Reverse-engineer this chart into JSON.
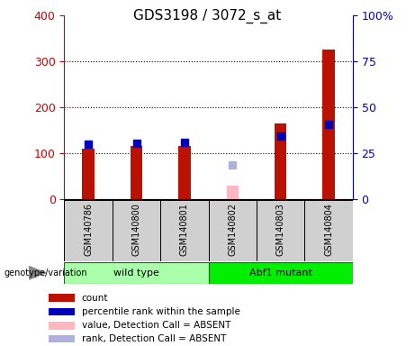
{
  "title": "GDS3198 / 3072_s_at",
  "samples": [
    "GSM140786",
    "GSM140800",
    "GSM140801",
    "GSM140802",
    "GSM140803",
    "GSM140804"
  ],
  "count_values": [
    110,
    115,
    115,
    0,
    165,
    325
  ],
  "percentile_values_left": [
    120,
    122,
    124,
    0,
    138,
    162
  ],
  "absent_value": [
    0,
    0,
    0,
    30,
    0,
    0
  ],
  "absent_rank_left": [
    0,
    0,
    0,
    75,
    0,
    0
  ],
  "absent_flags": [
    false,
    false,
    false,
    true,
    false,
    false
  ],
  "left_ylim": [
    0,
    400
  ],
  "right_ylim": [
    0,
    100
  ],
  "left_yticks": [
    0,
    100,
    200,
    300,
    400
  ],
  "right_yticks": [
    0,
    25,
    50,
    75,
    100
  ],
  "right_yticklabels": [
    "0",
    "25",
    "50",
    "75",
    "100%"
  ],
  "left_yaxis_color": "#cc0000",
  "right_yaxis_color": "#0000bb",
  "bar_color": "#bb1100",
  "marker_color": "#0000bb",
  "absent_bar_color": "#ffb6c1",
  "absent_marker_color": "#b0b0dd",
  "grid_yticks": [
    100,
    200,
    300
  ],
  "wild_type_color": "#aaffaa",
  "abf1_color": "#00ee00",
  "group_border_color": "#007700",
  "sample_box_color": "#d0d0d0",
  "legend_items": [
    {
      "color": "#bb1100",
      "label": "count"
    },
    {
      "color": "#0000bb",
      "label": "percentile rank within the sample"
    },
    {
      "color": "#ffb6c1",
      "label": "value, Detection Call = ABSENT"
    },
    {
      "color": "#b0b0dd",
      "label": "rank, Detection Call = ABSENT"
    }
  ],
  "bar_width": 0.25
}
